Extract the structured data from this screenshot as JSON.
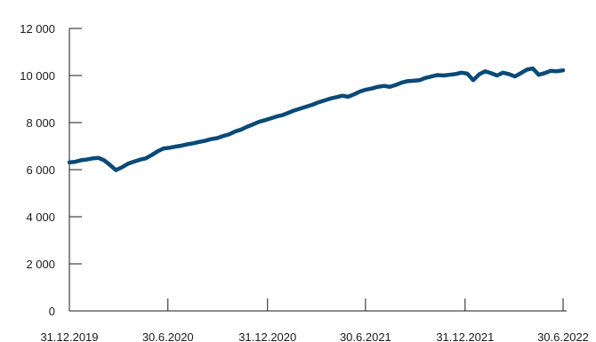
{
  "chart_data": {
    "type": "line",
    "title": "",
    "xlabel": "",
    "ylabel": "",
    "ylim": [
      0,
      12000
    ],
    "yticks": [
      0,
      2000,
      4000,
      6000,
      8000,
      10000,
      12000
    ],
    "ytick_labels": [
      "0",
      "2 000",
      "4 000",
      "6 000",
      "8 000",
      "10 000",
      "12 000"
    ],
    "xlim": [
      "2019-12-31",
      "2022-06-30"
    ],
    "xticks": [
      "2019-12-31",
      "2020-06-30",
      "2020-12-31",
      "2021-06-30",
      "2021-12-31",
      "2022-06-30"
    ],
    "xtick_labels": [
      "31.12.2019",
      "30.6.2020",
      "31.12.2020",
      "30.6.2021",
      "31.12.2021",
      "30.6.2022"
    ],
    "grid": false,
    "line_color": "#0a4a78",
    "series": [
      {
        "x": [
          "2019-12-31",
          "2020-01-10",
          "2020-01-21",
          "2020-02-01",
          "2020-02-12",
          "2020-02-23",
          "2020-03-04",
          "2020-03-15",
          "2020-03-26",
          "2020-04-06",
          "2020-04-17",
          "2020-04-28",
          "2020-05-09",
          "2020-05-20",
          "2020-05-31",
          "2020-06-11",
          "2020-06-22",
          "2020-07-03",
          "2020-07-14",
          "2020-07-25",
          "2020-08-05",
          "2020-08-16",
          "2020-08-27",
          "2020-09-07",
          "2020-09-18",
          "2020-09-29",
          "2020-10-10",
          "2020-10-21",
          "2020-11-01",
          "2020-11-12",
          "2020-11-23",
          "2020-12-04",
          "2020-12-15",
          "2020-12-26",
          "2021-01-06",
          "2021-01-17",
          "2021-01-28",
          "2021-02-08",
          "2021-02-19",
          "2021-03-02",
          "2021-03-13",
          "2021-03-24",
          "2021-04-04",
          "2021-04-15",
          "2021-04-26",
          "2021-05-07",
          "2021-05-18",
          "2021-05-29",
          "2021-06-09",
          "2021-06-20",
          "2021-07-01",
          "2021-07-12",
          "2021-07-23",
          "2021-08-03",
          "2021-08-14",
          "2021-08-25",
          "2021-09-05",
          "2021-09-16",
          "2021-09-27",
          "2021-10-08",
          "2021-10-19",
          "2021-10-30",
          "2021-11-10",
          "2021-11-21",
          "2021-12-02",
          "2021-12-13",
          "2021-12-24",
          "2022-01-04",
          "2022-01-15",
          "2022-01-26",
          "2022-02-06",
          "2022-02-17",
          "2022-02-28",
          "2022-03-11",
          "2022-03-22",
          "2022-04-02",
          "2022-04-13",
          "2022-04-24",
          "2022-05-05",
          "2022-05-16",
          "2022-05-27",
          "2022-06-07",
          "2022-06-18",
          "2022-06-30"
        ],
        "y": [
          6310,
          6330,
          6400,
          6430,
          6480,
          6500,
          6400,
          6200,
          5980,
          6100,
          6250,
          6340,
          6420,
          6480,
          6620,
          6780,
          6900,
          6930,
          6980,
          7020,
          7080,
          7120,
          7180,
          7230,
          7300,
          7340,
          7430,
          7500,
          7620,
          7700,
          7820,
          7920,
          8030,
          8100,
          8180,
          8260,
          8320,
          8420,
          8520,
          8600,
          8680,
          8760,
          8860,
          8940,
          9020,
          9080,
          9140,
          9100,
          9200,
          9320,
          9400,
          9450,
          9520,
          9560,
          9520,
          9600,
          9700,
          9760,
          9780,
          9800,
          9900,
          9960,
          10020,
          10000,
          10030,
          10060,
          10120,
          10080,
          9800,
          10050,
          10180,
          10100,
          10000,
          10120,
          10060,
          9960,
          10100,
          10250,
          10300,
          10030,
          10100,
          10200,
          10180,
          10220
        ]
      }
    ]
  }
}
